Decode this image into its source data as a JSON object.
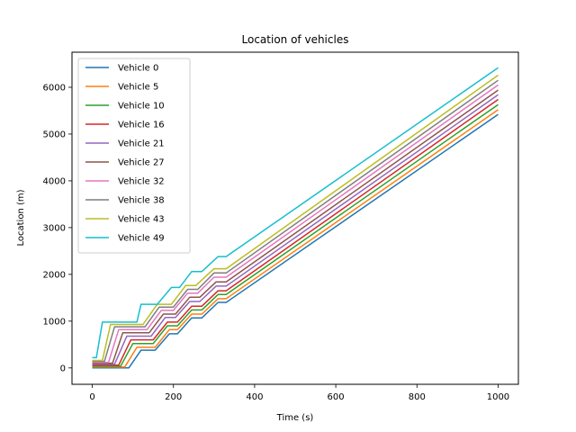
{
  "chart_data": {
    "type": "line",
    "title": "Location of vehicles",
    "xlabel": "Time (s)",
    "ylabel": "Location (m)",
    "xlim": [
      -50,
      1050
    ],
    "ylim": [
      -350,
      6750
    ],
    "xticks": [
      0,
      200,
      400,
      600,
      800,
      1000
    ],
    "yticks": [
      0,
      1000,
      2000,
      3000,
      4000,
      5000,
      6000
    ],
    "grid": false,
    "legend_position": "upper-left",
    "series": [
      {
        "name": "Vehicle 0",
        "color": "#1f77b4",
        "x": [
          0,
          90,
          120,
          155,
          190,
          210,
          245,
          270,
          310,
          330,
          1000
        ],
        "y": [
          0,
          0,
          380,
          380,
          730,
          730,
          1070,
          1070,
          1400,
          1400,
          5420
        ]
      },
      {
        "name": "Vehicle 5",
        "color": "#ff7f0e",
        "x": [
          0,
          80,
          110,
          155,
          190,
          210,
          245,
          270,
          310,
          330,
          1000
        ],
        "y": [
          20,
          20,
          440,
          440,
          820,
          820,
          1150,
          1150,
          1480,
          1480,
          5520
        ]
      },
      {
        "name": "Vehicle 10",
        "color": "#2ca02c",
        "x": [
          0,
          70,
          100,
          150,
          185,
          210,
          245,
          270,
          310,
          330,
          1000
        ],
        "y": [
          40,
          40,
          520,
          520,
          900,
          900,
          1240,
          1240,
          1570,
          1570,
          5630
        ]
      },
      {
        "name": "Vehicle 16",
        "color": "#d62728",
        "x": [
          0,
          65,
          95,
          150,
          185,
          210,
          245,
          270,
          310,
          330,
          1000
        ],
        "y": [
          60,
          60,
          600,
          600,
          980,
          980,
          1320,
          1320,
          1650,
          1650,
          5740
        ]
      },
      {
        "name": "Vehicle 21",
        "color": "#9467bd",
        "x": [
          0,
          55,
          85,
          145,
          180,
          205,
          240,
          265,
          305,
          330,
          1000
        ],
        "y": [
          80,
          80,
          680,
          680,
          1080,
          1080,
          1420,
          1420,
          1750,
          1750,
          5840
        ]
      },
      {
        "name": "Vehicle 27",
        "color": "#8c564b",
        "x": [
          0,
          50,
          75,
          140,
          175,
          205,
          240,
          265,
          305,
          330,
          1000
        ],
        "y": [
          100,
          100,
          750,
          750,
          1150,
          1150,
          1510,
          1510,
          1840,
          1840,
          5940
        ]
      },
      {
        "name": "Vehicle 32",
        "color": "#e377c2",
        "x": [
          0,
          40,
          65,
          135,
          170,
          200,
          235,
          260,
          300,
          330,
          1000
        ],
        "y": [
          120,
          120,
          820,
          820,
          1230,
          1230,
          1600,
          1600,
          1940,
          1940,
          6050
        ]
      },
      {
        "name": "Vehicle 38",
        "color": "#7f7f7f",
        "x": [
          0,
          30,
          55,
          130,
          165,
          200,
          235,
          260,
          300,
          330,
          1000
        ],
        "y": [
          140,
          140,
          880,
          880,
          1300,
          1300,
          1680,
          1680,
          2030,
          2030,
          6150
        ]
      },
      {
        "name": "Vehicle 43",
        "color": "#bcbd22",
        "x": [
          0,
          25,
          45,
          125,
          160,
          195,
          230,
          255,
          300,
          330,
          1000
        ],
        "y": [
          160,
          160,
          930,
          930,
          1360,
          1360,
          1760,
          1760,
          2120,
          2120,
          6260
        ]
      },
      {
        "name": "Vehicle 49",
        "color": "#17becf",
        "x": [
          0,
          10,
          25,
          110,
          120,
          160,
          195,
          215,
          245,
          270,
          310,
          330,
          1000
        ],
        "y": [
          220,
          220,
          980,
          980,
          1360,
          1360,
          1720,
          1720,
          2060,
          2060,
          2380,
          2380,
          6420
        ]
      }
    ]
  }
}
